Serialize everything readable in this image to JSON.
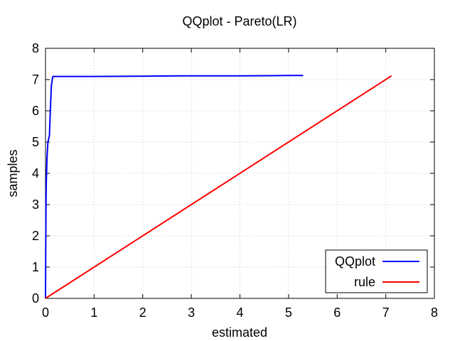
{
  "chart_data": {
    "type": "line",
    "title": "QQplot - Pareto(LR)",
    "xlabel": "estimated",
    "ylabel": "samples",
    "xlim": [
      0,
      8
    ],
    "ylim": [
      0,
      8
    ],
    "x_ticks": [
      "0",
      "1",
      "2",
      "3",
      "4",
      "5",
      "6",
      "7",
      "8"
    ],
    "y_ticks": [
      "0",
      "1",
      "2",
      "3",
      "4",
      "5",
      "6",
      "7",
      "8"
    ],
    "grid": true,
    "legend_position": "bottom-right",
    "series": [
      {
        "name": "QQplot",
        "color": "#0000ff",
        "points": [
          [
            0.0,
            0.0
          ],
          [
            0.005,
            1.5
          ],
          [
            0.01,
            3.0
          ],
          [
            0.015,
            3.6
          ],
          [
            0.03,
            4.5
          ],
          [
            0.05,
            5.0
          ],
          [
            0.08,
            5.2
          ],
          [
            0.1,
            6.0
          ],
          [
            0.12,
            6.8
          ],
          [
            0.15,
            7.1
          ],
          [
            1.0,
            7.1
          ],
          [
            2.0,
            7.11
          ],
          [
            3.0,
            7.12
          ],
          [
            4.0,
            7.12
          ],
          [
            5.0,
            7.13
          ],
          [
            5.3,
            7.13
          ]
        ]
      },
      {
        "name": "rule",
        "color": "#ff0000",
        "points": [
          [
            0.0,
            0.0
          ],
          [
            7.12,
            7.12
          ]
        ]
      }
    ]
  }
}
